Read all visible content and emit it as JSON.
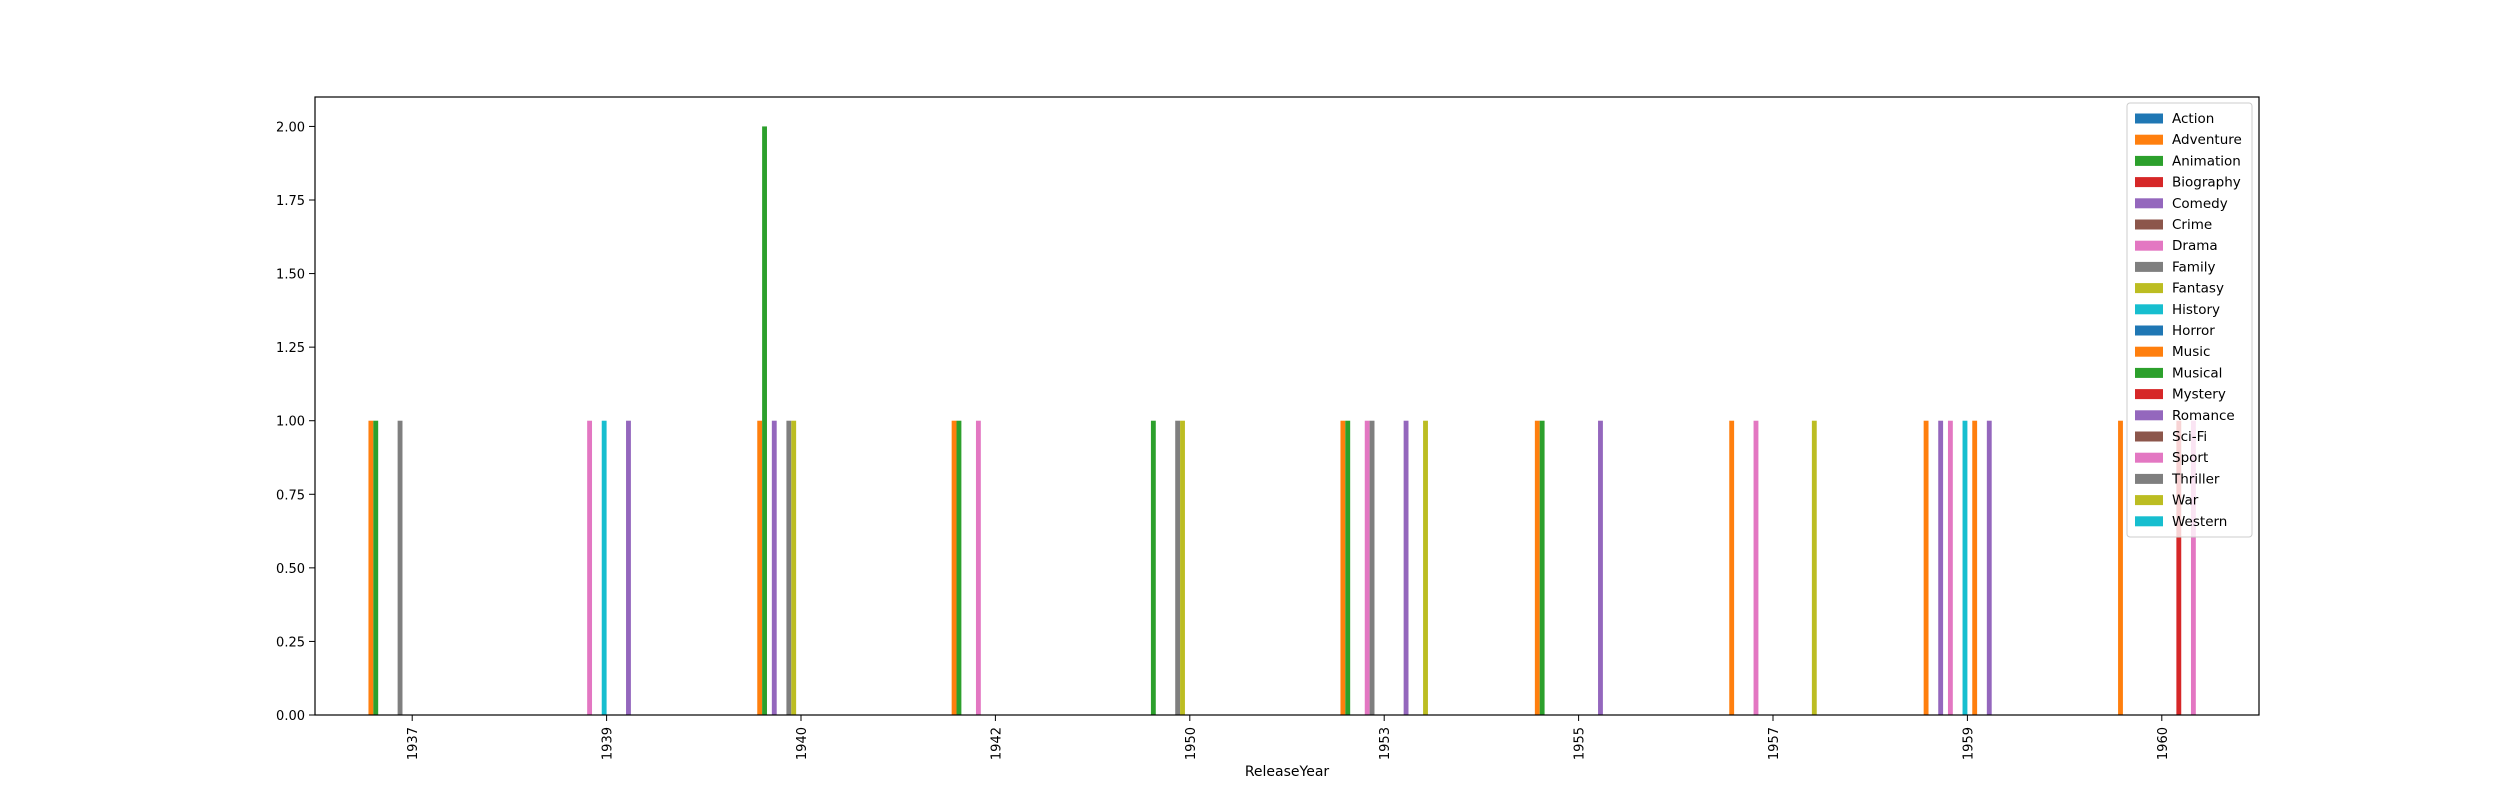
{
  "chart_data": {
    "type": "bar",
    "title": "",
    "xlabel": "ReleaseYear",
    "ylabel": "",
    "ylim": [
      0,
      2.1
    ],
    "yticks": [
      "0.00",
      "0.25",
      "0.50",
      "0.75",
      "1.00",
      "1.25",
      "1.50",
      "1.75",
      "2.00"
    ],
    "grid": false,
    "legend_position": "top-right",
    "categories": [
      "1937",
      "1939",
      "1940",
      "1942",
      "1950",
      "1953",
      "1955",
      "1957",
      "1959",
      "1960"
    ],
    "series": [
      {
        "name": "Action",
        "color": "#1f77b4",
        "values": [
          0,
          0,
          0,
          0,
          0,
          0,
          0,
          0,
          0,
          0
        ]
      },
      {
        "name": "Adventure",
        "color": "#ff7f0e",
        "values": [
          1,
          0,
          1,
          1,
          0,
          1,
          1,
          1,
          1,
          1
        ]
      },
      {
        "name": "Animation",
        "color": "#2ca02c",
        "values": [
          1,
          0,
          2,
          1,
          1,
          1,
          1,
          0,
          0,
          0
        ]
      },
      {
        "name": "Biography",
        "color": "#d62728",
        "values": [
          0,
          0,
          0,
          0,
          0,
          0,
          0,
          0,
          0,
          0
        ]
      },
      {
        "name": "Comedy",
        "color": "#9467bd",
        "values": [
          0,
          0,
          1,
          0,
          0,
          0,
          0,
          0,
          1,
          0
        ]
      },
      {
        "name": "Crime",
        "color": "#8c564b",
        "values": [
          0,
          0,
          0,
          0,
          0,
          0,
          0,
          0,
          0,
          0
        ]
      },
      {
        "name": "Drama",
        "color": "#e377c2",
        "values": [
          0,
          1,
          0,
          1,
          0,
          1,
          0,
          1,
          1,
          0
        ]
      },
      {
        "name": "Family",
        "color": "#7f7f7f",
        "values": [
          1,
          0,
          1,
          0,
          1,
          1,
          0,
          0,
          0,
          0
        ]
      },
      {
        "name": "Fantasy",
        "color": "#bcbd22",
        "values": [
          0,
          0,
          1,
          0,
          1,
          0,
          0,
          0,
          0,
          0
        ]
      },
      {
        "name": "History",
        "color": "#17becf",
        "values": [
          0,
          1,
          0,
          0,
          0,
          0,
          0,
          0,
          1,
          0
        ]
      },
      {
        "name": "Horror",
        "color": "#1f77b4",
        "values": [
          0,
          0,
          0,
          0,
          0,
          0,
          0,
          0,
          0,
          0
        ]
      },
      {
        "name": "Music",
        "color": "#ff7f0e",
        "values": [
          0,
          0,
          0,
          0,
          0,
          0,
          0,
          0,
          1,
          0
        ]
      },
      {
        "name": "Musical",
        "color": "#2ca02c",
        "values": [
          0,
          0,
          0,
          0,
          0,
          0,
          0,
          0,
          0,
          0
        ]
      },
      {
        "name": "Mystery",
        "color": "#d62728",
        "values": [
          0,
          0,
          0,
          0,
          0,
          0,
          0,
          0,
          0,
          1
        ]
      },
      {
        "name": "Romance",
        "color": "#9467bd",
        "values": [
          0,
          1,
          0,
          0,
          0,
          1,
          1,
          0,
          1,
          0
        ]
      },
      {
        "name": "Sci-Fi",
        "color": "#8c564b",
        "values": [
          0,
          0,
          0,
          0,
          0,
          0,
          0,
          0,
          0,
          0
        ]
      },
      {
        "name": "Sport",
        "color": "#e377c2",
        "values": [
          0,
          0,
          0,
          0,
          0,
          0,
          0,
          0,
          0,
          1
        ]
      },
      {
        "name": "Thriller",
        "color": "#7f7f7f",
        "values": [
          0,
          0,
          0,
          0,
          0,
          0,
          0,
          0,
          0,
          0
        ]
      },
      {
        "name": "War",
        "color": "#bcbd22",
        "values": [
          0,
          0,
          0,
          0,
          0,
          1,
          0,
          1,
          0,
          0
        ]
      },
      {
        "name": "Western",
        "color": "#17becf",
        "values": [
          0,
          0,
          0,
          0,
          0,
          0,
          0,
          0,
          0,
          0
        ]
      }
    ]
  }
}
